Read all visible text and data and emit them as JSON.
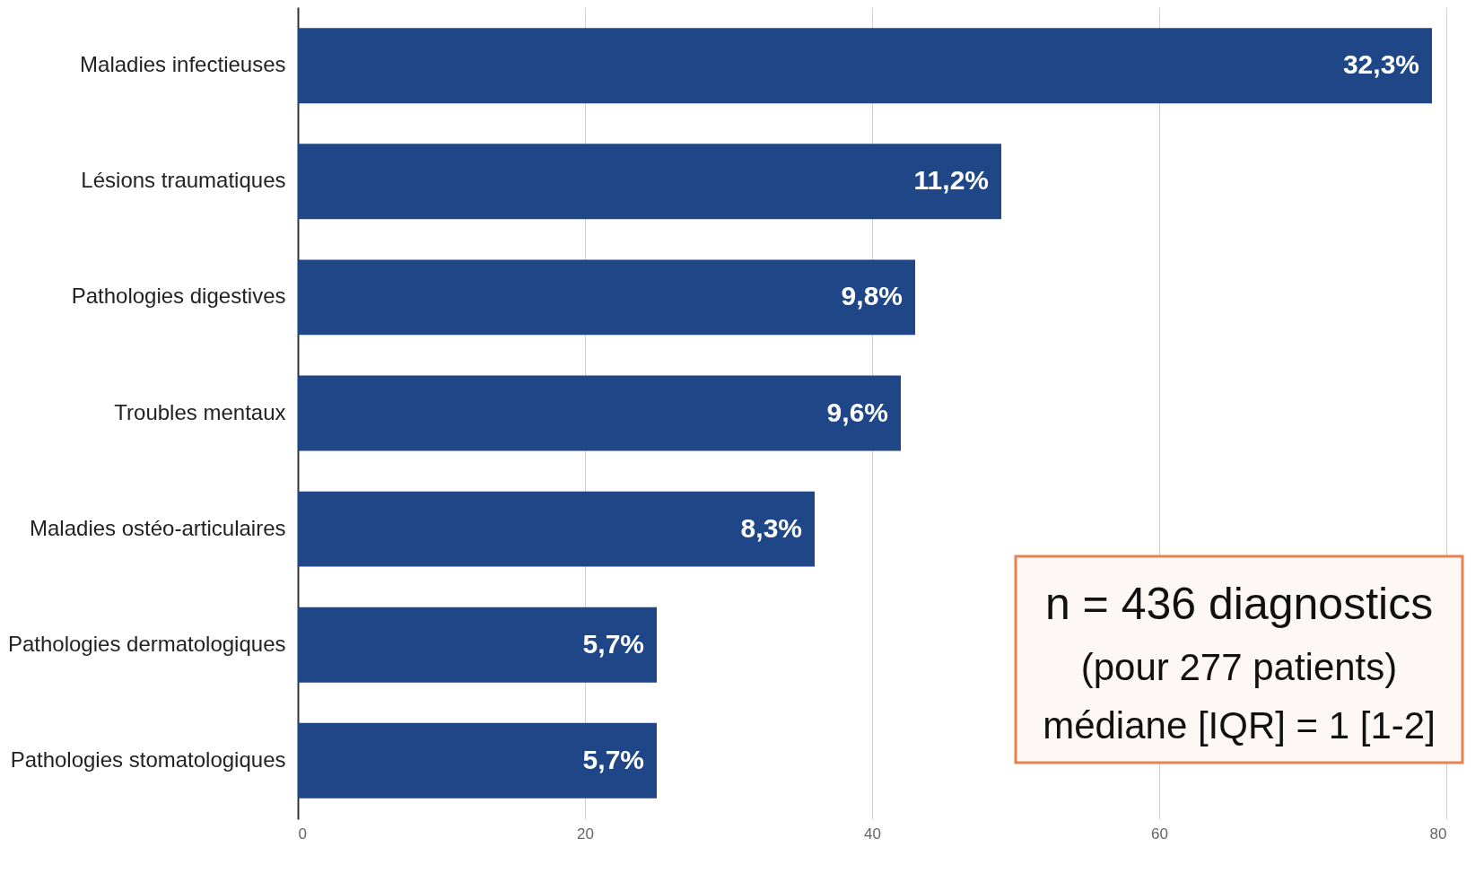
{
  "chart_data": {
    "type": "bar",
    "orientation": "horizontal",
    "categories": [
      "Maladies infectieuses",
      "Lésions traumatiques",
      "Pathologies digestives",
      "Troubles mentaux",
      "Maladies ostéo-articulaires",
      "Pathologies dermatologiques",
      "Pathologies stomatologiques"
    ],
    "values": [
      79,
      49,
      43,
      42,
      36,
      25,
      25
    ],
    "color": "#1f4788",
    "xlim": [
      0,
      80
    ],
    "xticks": [
      0,
      20,
      40,
      60,
      80
    ],
    "grid": "x",
    "annotations": [
      "n = 436 diagnostics",
      "(pour 277 patients)",
      "médiane [IQR] = 1 [1-2]",
      {
        "text": "32,3%",
        "x": 79,
        "y": "Maladies infectieuses"
      },
      {
        "text": "11,2%",
        "x": 49,
        "y": "Lésions traumatiques"
      },
      {
        "text": "9,8%",
        "x": 43,
        "y": "Pathologies digestives"
      },
      {
        "text": "9,6%",
        "x": 42,
        "y": "Troubles mentaux"
      },
      {
        "text": "8,3%",
        "x": 36,
        "y": "Maladies ostéo-articulaires"
      },
      {
        "text": "5,7%",
        "x": 25,
        "y": "Pathologies dermatologiques"
      },
      {
        "text": "5,7%",
        "x": 25,
        "y": "Pathologies stomatologiques"
      }
    ]
  }
}
